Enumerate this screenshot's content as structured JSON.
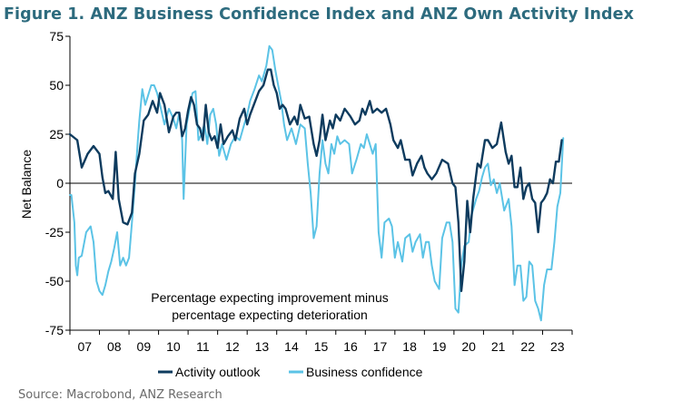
{
  "figure": {
    "title": "Figure 1.  ANZ Business Confidence Index and ANZ Own Activity Index",
    "source": "Source: Macrobond, ANZ Research"
  },
  "colors": {
    "activity": "#0e3b5e",
    "business": "#5bc3e6",
    "axis": "#000000",
    "title": "#2d6b7e"
  },
  "chart_data": {
    "type": "line",
    "ylabel": "Net Balance",
    "ylim": [
      -75,
      75
    ],
    "yticks": [
      75,
      50,
      25,
      0,
      -25,
      -50,
      -75
    ],
    "x_range": [
      2007,
      2024
    ],
    "x_ticks": [
      {
        "label": "07",
        "at": 2007.5
      },
      {
        "label": "08",
        "at": 2008.5
      },
      {
        "label": "09",
        "at": 2009.5
      },
      {
        "label": "10",
        "at": 2010.5
      },
      {
        "label": "11",
        "at": 2011.5
      },
      {
        "label": "12",
        "at": 2012.5
      },
      {
        "label": "13",
        "at": 2013.5
      },
      {
        "label": "14",
        "at": 2014.5
      },
      {
        "label": "15",
        "at": 2015.5
      },
      {
        "label": "16",
        "at": 2016.5
      },
      {
        "label": "17",
        "at": 2017.5
      },
      {
        "label": "18",
        "at": 2018.5
      },
      {
        "label": "19",
        "at": 2019.5
      },
      {
        "label": "20",
        "at": 2020.5
      },
      {
        "label": "21",
        "at": 2021.5
      },
      {
        "label": "22",
        "at": 2022.5
      },
      {
        "label": "23",
        "at": 2023.5
      }
    ],
    "annotation": [
      "Percentage expecting improvement minus",
      "percentage expecting deterioration"
    ],
    "legend": [
      "Activity outlook",
      "Business confidence"
    ],
    "series": [
      {
        "name": "Activity outlook",
        "points": [
          [
            2007.0,
            25
          ],
          [
            2007.25,
            22
          ],
          [
            2007.4,
            8
          ],
          [
            2007.6,
            15
          ],
          [
            2007.8,
            19
          ],
          [
            2008.0,
            15
          ],
          [
            2008.1,
            3
          ],
          [
            2008.2,
            -5
          ],
          [
            2008.3,
            -4
          ],
          [
            2008.45,
            -8
          ],
          [
            2008.55,
            16
          ],
          [
            2008.65,
            -8
          ],
          [
            2008.8,
            -20
          ],
          [
            2008.95,
            -21
          ],
          [
            2009.1,
            -15
          ],
          [
            2009.2,
            5
          ],
          [
            2009.35,
            15
          ],
          [
            2009.5,
            32
          ],
          [
            2009.65,
            35
          ],
          [
            2009.8,
            42
          ],
          [
            2009.95,
            36
          ],
          [
            2010.05,
            46
          ],
          [
            2010.2,
            40
          ],
          [
            2010.35,
            26
          ],
          [
            2010.5,
            34
          ],
          [
            2010.6,
            36
          ],
          [
            2010.7,
            36
          ],
          [
            2010.8,
            24
          ],
          [
            2010.9,
            28
          ],
          [
            2011.0,
            37
          ],
          [
            2011.1,
            44
          ],
          [
            2011.2,
            40
          ],
          [
            2011.3,
            30
          ],
          [
            2011.4,
            28
          ],
          [
            2011.5,
            22
          ],
          [
            2011.6,
            40
          ],
          [
            2011.7,
            26
          ],
          [
            2011.8,
            22
          ],
          [
            2011.9,
            24
          ],
          [
            2012.0,
            18
          ],
          [
            2012.1,
            30
          ],
          [
            2012.2,
            20
          ],
          [
            2012.35,
            24
          ],
          [
            2012.5,
            27
          ],
          [
            2012.6,
            22
          ],
          [
            2012.75,
            33
          ],
          [
            2012.9,
            38
          ],
          [
            2013.0,
            30
          ],
          [
            2013.1,
            35
          ],
          [
            2013.25,
            41
          ],
          [
            2013.4,
            47
          ],
          [
            2013.55,
            50
          ],
          [
            2013.7,
            58
          ],
          [
            2013.8,
            58
          ],
          [
            2013.9,
            50
          ],
          [
            2014.0,
            46
          ],
          [
            2014.1,
            38
          ],
          [
            2014.2,
            40
          ],
          [
            2014.3,
            38
          ],
          [
            2014.45,
            30
          ],
          [
            2014.6,
            34
          ],
          [
            2014.7,
            30
          ],
          [
            2014.8,
            40
          ],
          [
            2014.95,
            33
          ],
          [
            2015.1,
            34
          ],
          [
            2015.25,
            20
          ],
          [
            2015.35,
            14
          ],
          [
            2015.45,
            22
          ],
          [
            2015.55,
            35
          ],
          [
            2015.65,
            22
          ],
          [
            2015.8,
            32
          ],
          [
            2015.9,
            28
          ],
          [
            2016.0,
            35
          ],
          [
            2016.15,
            32
          ],
          [
            2016.3,
            38
          ],
          [
            2016.4,
            36
          ],
          [
            2016.5,
            34
          ],
          [
            2016.65,
            30
          ],
          [
            2016.8,
            32
          ],
          [
            2016.9,
            38
          ],
          [
            2017.0,
            35
          ],
          [
            2017.15,
            42
          ],
          [
            2017.25,
            36
          ],
          [
            2017.4,
            38
          ],
          [
            2017.55,
            36
          ],
          [
            2017.7,
            38
          ],
          [
            2017.85,
            30
          ],
          [
            2017.95,
            22
          ],
          [
            2018.1,
            18
          ],
          [
            2018.2,
            22
          ],
          [
            2018.35,
            12
          ],
          [
            2018.5,
            12
          ],
          [
            2018.6,
            4
          ],
          [
            2018.75,
            10
          ],
          [
            2018.9,
            14
          ],
          [
            2019.0,
            8
          ],
          [
            2019.1,
            5
          ],
          [
            2019.25,
            2
          ],
          [
            2019.4,
            5
          ],
          [
            2019.6,
            12
          ],
          [
            2019.8,
            10
          ],
          [
            2019.95,
            0
          ],
          [
            2020.05,
            -2
          ],
          [
            2020.15,
            -20
          ],
          [
            2020.25,
            -55
          ],
          [
            2020.35,
            -40
          ],
          [
            2020.45,
            -9
          ],
          [
            2020.55,
            -25
          ],
          [
            2020.65,
            -8
          ],
          [
            2020.8,
            10
          ],
          [
            2020.9,
            8
          ],
          [
            2021.05,
            22
          ],
          [
            2021.15,
            22
          ],
          [
            2021.3,
            18
          ],
          [
            2021.45,
            20
          ],
          [
            2021.6,
            31
          ],
          [
            2021.75,
            16
          ],
          [
            2021.85,
            10
          ],
          [
            2021.95,
            14
          ],
          [
            2022.05,
            -2
          ],
          [
            2022.15,
            -2
          ],
          [
            2022.25,
            8
          ],
          [
            2022.35,
            -8
          ],
          [
            2022.45,
            -2
          ],
          [
            2022.55,
            0
          ],
          [
            2022.65,
            -8
          ],
          [
            2022.75,
            -10
          ],
          [
            2022.85,
            -25
          ],
          [
            2022.95,
            -10
          ],
          [
            2023.05,
            -8
          ],
          [
            2023.15,
            -5
          ],
          [
            2023.25,
            2
          ],
          [
            2023.35,
            0
          ],
          [
            2023.45,
            11
          ],
          [
            2023.55,
            11
          ],
          [
            2023.65,
            22
          ]
        ]
      },
      {
        "name": "Business confidence",
        "points": [
          [
            2007.0,
            -6
          ],
          [
            2007.05,
            -6
          ],
          [
            2007.15,
            -20
          ],
          [
            2007.2,
            -42
          ],
          [
            2007.25,
            -47
          ],
          [
            2007.3,
            -38
          ],
          [
            2007.4,
            -37
          ],
          [
            2007.55,
            -25
          ],
          [
            2007.7,
            -22
          ],
          [
            2007.8,
            -30
          ],
          [
            2007.9,
            -50
          ],
          [
            2008.0,
            -55
          ],
          [
            2008.1,
            -57
          ],
          [
            2008.2,
            -52
          ],
          [
            2008.3,
            -45
          ],
          [
            2008.4,
            -40
          ],
          [
            2008.5,
            -33
          ],
          [
            2008.6,
            -25
          ],
          [
            2008.7,
            -42
          ],
          [
            2008.8,
            -38
          ],
          [
            2008.9,
            -42
          ],
          [
            2009.0,
            -38
          ],
          [
            2009.1,
            -20
          ],
          [
            2009.2,
            0
          ],
          [
            2009.3,
            22
          ],
          [
            2009.35,
            32
          ],
          [
            2009.45,
            48
          ],
          [
            2009.55,
            40
          ],
          [
            2009.65,
            45
          ],
          [
            2009.75,
            50
          ],
          [
            2009.85,
            50
          ],
          [
            2009.95,
            46
          ],
          [
            2010.05,
            40
          ],
          [
            2010.2,
            30
          ],
          [
            2010.35,
            38
          ],
          [
            2010.5,
            33
          ],
          [
            2010.6,
            28
          ],
          [
            2010.7,
            36
          ],
          [
            2010.8,
            22
          ],
          [
            2010.85,
            -8
          ],
          [
            2010.95,
            30
          ],
          [
            2011.05,
            38
          ],
          [
            2011.15,
            46
          ],
          [
            2011.25,
            47
          ],
          [
            2011.35,
            22
          ],
          [
            2011.45,
            25
          ],
          [
            2011.55,
            30
          ],
          [
            2011.65,
            20
          ],
          [
            2011.75,
            35
          ],
          [
            2011.85,
            38
          ],
          [
            2011.95,
            30
          ],
          [
            2012.05,
            14
          ],
          [
            2012.15,
            20
          ],
          [
            2012.3,
            12
          ],
          [
            2012.45,
            20
          ],
          [
            2012.6,
            24
          ],
          [
            2012.75,
            22
          ],
          [
            2012.9,
            30
          ],
          [
            2013.0,
            35
          ],
          [
            2013.1,
            42
          ],
          [
            2013.25,
            48
          ],
          [
            2013.4,
            55
          ],
          [
            2013.5,
            52
          ],
          [
            2013.65,
            60
          ],
          [
            2013.75,
            70
          ],
          [
            2013.85,
            68
          ],
          [
            2013.95,
            58
          ],
          [
            2014.05,
            50
          ],
          [
            2014.15,
            42
          ],
          [
            2014.25,
            30
          ],
          [
            2014.35,
            22
          ],
          [
            2014.5,
            28
          ],
          [
            2014.65,
            20
          ],
          [
            2014.8,
            30
          ],
          [
            2014.95,
            28
          ],
          [
            2015.05,
            10
          ],
          [
            2015.15,
            -5
          ],
          [
            2015.25,
            -28
          ],
          [
            2015.35,
            -22
          ],
          [
            2015.45,
            5
          ],
          [
            2015.55,
            22
          ],
          [
            2015.65,
            10
          ],
          [
            2015.75,
            5
          ],
          [
            2015.85,
            20
          ],
          [
            2015.95,
            15
          ],
          [
            2016.05,
            24
          ],
          [
            2016.15,
            20
          ],
          [
            2016.3,
            22
          ],
          [
            2016.45,
            20
          ],
          [
            2016.55,
            5
          ],
          [
            2016.7,
            12
          ],
          [
            2016.85,
            20
          ],
          [
            2016.95,
            18
          ],
          [
            2017.05,
            25
          ],
          [
            2017.15,
            20
          ],
          [
            2017.25,
            15
          ],
          [
            2017.35,
            20
          ],
          [
            2017.45,
            -25
          ],
          [
            2017.55,
            -38
          ],
          [
            2017.65,
            -20
          ],
          [
            2017.8,
            -18
          ],
          [
            2017.9,
            -22
          ],
          [
            2018.0,
            -38
          ],
          [
            2018.1,
            -30
          ],
          [
            2018.25,
            -40
          ],
          [
            2018.35,
            -28
          ],
          [
            2018.5,
            -26
          ],
          [
            2018.6,
            -35
          ],
          [
            2018.7,
            -30
          ],
          [
            2018.85,
            -26
          ],
          [
            2018.95,
            -38
          ],
          [
            2019.05,
            -30
          ],
          [
            2019.15,
            -30
          ],
          [
            2019.25,
            -42
          ],
          [
            2019.35,
            -50
          ],
          [
            2019.5,
            -54
          ],
          [
            2019.6,
            -28
          ],
          [
            2019.75,
            -20
          ],
          [
            2019.85,
            -20
          ],
          [
            2019.95,
            -30
          ],
          [
            2020.05,
            -64
          ],
          [
            2020.15,
            -66
          ],
          [
            2020.25,
            -42
          ],
          [
            2020.35,
            -32
          ],
          [
            2020.5,
            -30
          ],
          [
            2020.6,
            -16
          ],
          [
            2020.75,
            -8
          ],
          [
            2020.85,
            -4
          ],
          [
            2020.95,
            3
          ],
          [
            2021.05,
            8
          ],
          [
            2021.15,
            10
          ],
          [
            2021.25,
            -1
          ],
          [
            2021.35,
            2
          ],
          [
            2021.45,
            -5
          ],
          [
            2021.55,
            0
          ],
          [
            2021.7,
            -14
          ],
          [
            2021.85,
            -8
          ],
          [
            2021.95,
            -22
          ],
          [
            2022.05,
            -52
          ],
          [
            2022.15,
            -42
          ],
          [
            2022.25,
            -42
          ],
          [
            2022.35,
            -60
          ],
          [
            2022.45,
            -58
          ],
          [
            2022.55,
            -40
          ],
          [
            2022.65,
            -42
          ],
          [
            2022.75,
            -60
          ],
          [
            2022.85,
            -64
          ],
          [
            2022.95,
            -70
          ],
          [
            2023.05,
            -52
          ],
          [
            2023.15,
            -44
          ],
          [
            2023.3,
            -44
          ],
          [
            2023.4,
            -30
          ],
          [
            2023.5,
            -12
          ],
          [
            2023.6,
            -5
          ],
          [
            2023.7,
            23
          ]
        ]
      }
    ]
  }
}
